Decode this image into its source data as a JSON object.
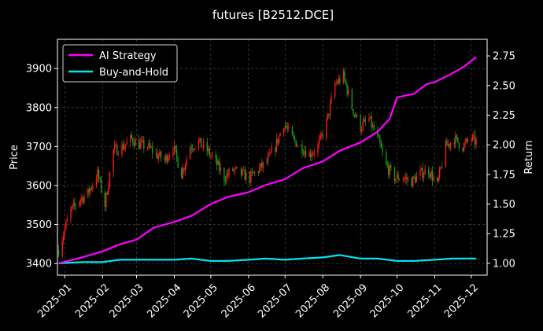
{
  "chart_data": {
    "type": "line",
    "title": "futures [B2512.DCE]",
    "ylabel_left": "Price",
    "ylabel_right": "Return",
    "x_ticks": [
      "2025-01",
      "2025-02",
      "2025-03",
      "2025-04",
      "2025-05",
      "2025-06",
      "2025-07",
      "2025-08",
      "2025-09",
      "2025-10",
      "2025-11",
      "2025-12"
    ],
    "y_left_ticks": [
      3400,
      3500,
      3600,
      3700,
      3800,
      3900
    ],
    "y_right_ticks": [
      "1.00",
      "1.25",
      "1.50",
      "1.75",
      "2.00",
      "2.25",
      "2.50",
      "2.75"
    ],
    "x_range": [
      "2024-12-26",
      "2025-12-14"
    ],
    "y_left_range": [
      3370,
      3975
    ],
    "y_right_range": [
      0.9,
      2.89
    ],
    "grid": true,
    "legend_position": "top-left",
    "colors": {
      "background": "#000000",
      "ai_strategy": "#ff00ff",
      "buy_and_hold": "#00e5ee",
      "candle_up": "#ff1a1a",
      "candle_down": "#1a9c1a",
      "grid": "#555555"
    },
    "series": [
      {
        "name": "AI Strategy",
        "axis": "right",
        "points": [
          [
            "2024-12-27",
            1.0
          ],
          [
            "2025-01-15",
            1.05
          ],
          [
            "2025-02-01",
            1.1
          ],
          [
            "2025-02-15",
            1.16
          ],
          [
            "2025-03-01",
            1.2
          ],
          [
            "2025-03-15",
            1.3
          ],
          [
            "2025-04-01",
            1.35
          ],
          [
            "2025-04-15",
            1.4
          ],
          [
            "2025-05-01",
            1.5
          ],
          [
            "2025-05-15",
            1.56
          ],
          [
            "2025-06-01",
            1.6
          ],
          [
            "2025-06-15",
            1.66
          ],
          [
            "2025-07-01",
            1.71
          ],
          [
            "2025-07-15",
            1.8
          ],
          [
            "2025-08-01",
            1.86
          ],
          [
            "2025-08-15",
            1.95
          ],
          [
            "2025-09-01",
            2.02
          ],
          [
            "2025-09-15",
            2.11
          ],
          [
            "2025-09-25",
            2.22
          ],
          [
            "2025-10-01",
            2.4
          ],
          [
            "2025-10-15",
            2.43
          ],
          [
            "2025-10-25",
            2.51
          ],
          [
            "2025-11-01",
            2.53
          ],
          [
            "2025-11-15",
            2.6
          ],
          [
            "2025-11-25",
            2.66
          ],
          [
            "2025-12-05",
            2.74
          ]
        ]
      },
      {
        "name": "Buy-and-Hold",
        "axis": "right",
        "points": [
          [
            "2024-12-27",
            1.0
          ],
          [
            "2025-01-15",
            1.01
          ],
          [
            "2025-02-01",
            1.01
          ],
          [
            "2025-02-15",
            1.03
          ],
          [
            "2025-03-01",
            1.03
          ],
          [
            "2025-03-15",
            1.03
          ],
          [
            "2025-04-01",
            1.03
          ],
          [
            "2025-04-15",
            1.04
          ],
          [
            "2025-05-01",
            1.02
          ],
          [
            "2025-05-15",
            1.02
          ],
          [
            "2025-06-01",
            1.03
          ],
          [
            "2025-06-15",
            1.04
          ],
          [
            "2025-07-01",
            1.03
          ],
          [
            "2025-07-15",
            1.04
          ],
          [
            "2025-08-01",
            1.05
          ],
          [
            "2025-08-15",
            1.07
          ],
          [
            "2025-09-01",
            1.04
          ],
          [
            "2025-09-15",
            1.04
          ],
          [
            "2025-10-01",
            1.02
          ],
          [
            "2025-10-15",
            1.02
          ],
          [
            "2025-11-01",
            1.03
          ],
          [
            "2025-11-15",
            1.04
          ],
          [
            "2025-12-05",
            1.04
          ]
        ]
      },
      {
        "name": "Price",
        "axis": "left",
        "points": [
          [
            "2024-12-27",
            3435
          ],
          [
            "2025-01-05",
            3530
          ],
          [
            "2025-01-12",
            3560
          ],
          [
            "2025-01-20",
            3580
          ],
          [
            "2025-01-28",
            3630
          ],
          [
            "2025-02-03",
            3550
          ],
          [
            "2025-02-10",
            3690
          ],
          [
            "2025-02-18",
            3700
          ],
          [
            "2025-02-25",
            3720
          ],
          [
            "2025-03-03",
            3705
          ],
          [
            "2025-03-10",
            3700
          ],
          [
            "2025-03-17",
            3680
          ],
          [
            "2025-03-24",
            3665
          ],
          [
            "2025-03-31",
            3700
          ],
          [
            "2025-04-07",
            3630
          ],
          [
            "2025-04-14",
            3700
          ],
          [
            "2025-04-21",
            3710
          ],
          [
            "2025-04-28",
            3690
          ],
          [
            "2025-05-05",
            3660
          ],
          [
            "2025-05-12",
            3620
          ],
          [
            "2025-05-19",
            3640
          ],
          [
            "2025-05-26",
            3630
          ],
          [
            "2025-06-02",
            3620
          ],
          [
            "2025-06-09",
            3640
          ],
          [
            "2025-06-16",
            3660
          ],
          [
            "2025-06-23",
            3700
          ],
          [
            "2025-06-30",
            3760
          ],
          [
            "2025-07-07",
            3720
          ],
          [
            "2025-07-14",
            3700
          ],
          [
            "2025-07-21",
            3680
          ],
          [
            "2025-07-28",
            3700
          ],
          [
            "2025-08-04",
            3760
          ],
          [
            "2025-08-11",
            3860
          ],
          [
            "2025-08-18",
            3880
          ],
          [
            "2025-08-25",
            3800
          ],
          [
            "2025-09-01",
            3750
          ],
          [
            "2025-09-08",
            3770
          ],
          [
            "2025-09-15",
            3720
          ],
          [
            "2025-09-22",
            3650
          ],
          [
            "2025-09-29",
            3620
          ],
          [
            "2025-10-06",
            3620
          ],
          [
            "2025-10-13",
            3610
          ],
          [
            "2025-10-20",
            3630
          ],
          [
            "2025-10-27",
            3640
          ],
          [
            "2025-11-03",
            3600
          ],
          [
            "2025-11-10",
            3700
          ],
          [
            "2025-11-17",
            3720
          ],
          [
            "2025-11-24",
            3700
          ],
          [
            "2025-12-01",
            3720
          ],
          [
            "2025-12-05",
            3710
          ]
        ]
      }
    ]
  }
}
